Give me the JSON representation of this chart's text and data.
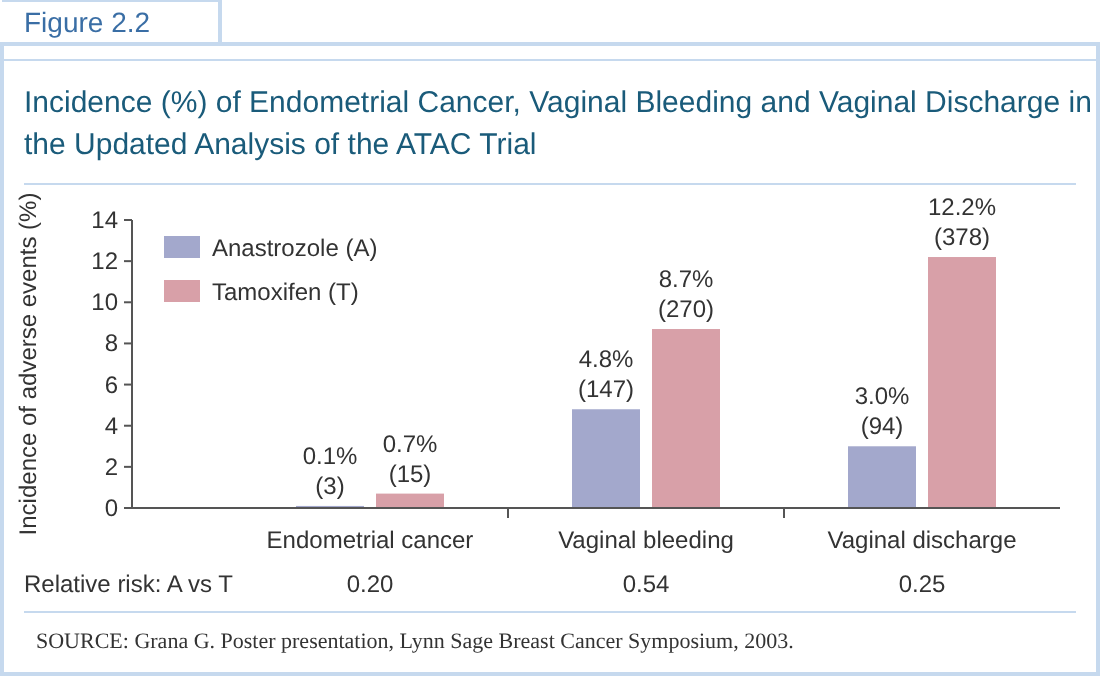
{
  "chart_data": {
    "type": "bar",
    "title": "Incidence (%) of Endometrial Cancer, Vaginal Bleeding and Vaginal Discharge in the Updated Analysis of the ATAC Trial",
    "ylabel": "Incidence of adverse events (%)",
    "categories": [
      "Endometrial cancer",
      "Vaginal bleeding",
      "Vaginal discharge"
    ],
    "series": [
      {
        "name": "Anastrozole (A)",
        "color": "#a3a8cc",
        "values": [
          0.1,
          4.8,
          3.0
        ],
        "value_labels": [
          "0.1%\n(3)",
          "4.8%\n(147)",
          "3.0%\n(94)"
        ]
      },
      {
        "name": "Tamoxifen (T)",
        "color": "#d8a0a8",
        "values": [
          0.7,
          8.7,
          12.2
        ],
        "value_labels": [
          "0.7%\n(15)",
          "8.7%\n(270)",
          "12.2%\n(378)"
        ]
      }
    ],
    "ylim": [
      0,
      14
    ],
    "yticks": [
      0,
      2,
      4,
      6,
      8,
      10,
      12,
      14
    ],
    "grid": false,
    "legend": "top left",
    "annotations": [
      "Figure 2.2",
      "Relative risk: A vs T",
      "0.20",
      "0.54",
      "0.25",
      "SOURCE: Grana G. Poster presentation, Lynn Sage Breast Cancer Symposium, 2003."
    ]
  }
}
